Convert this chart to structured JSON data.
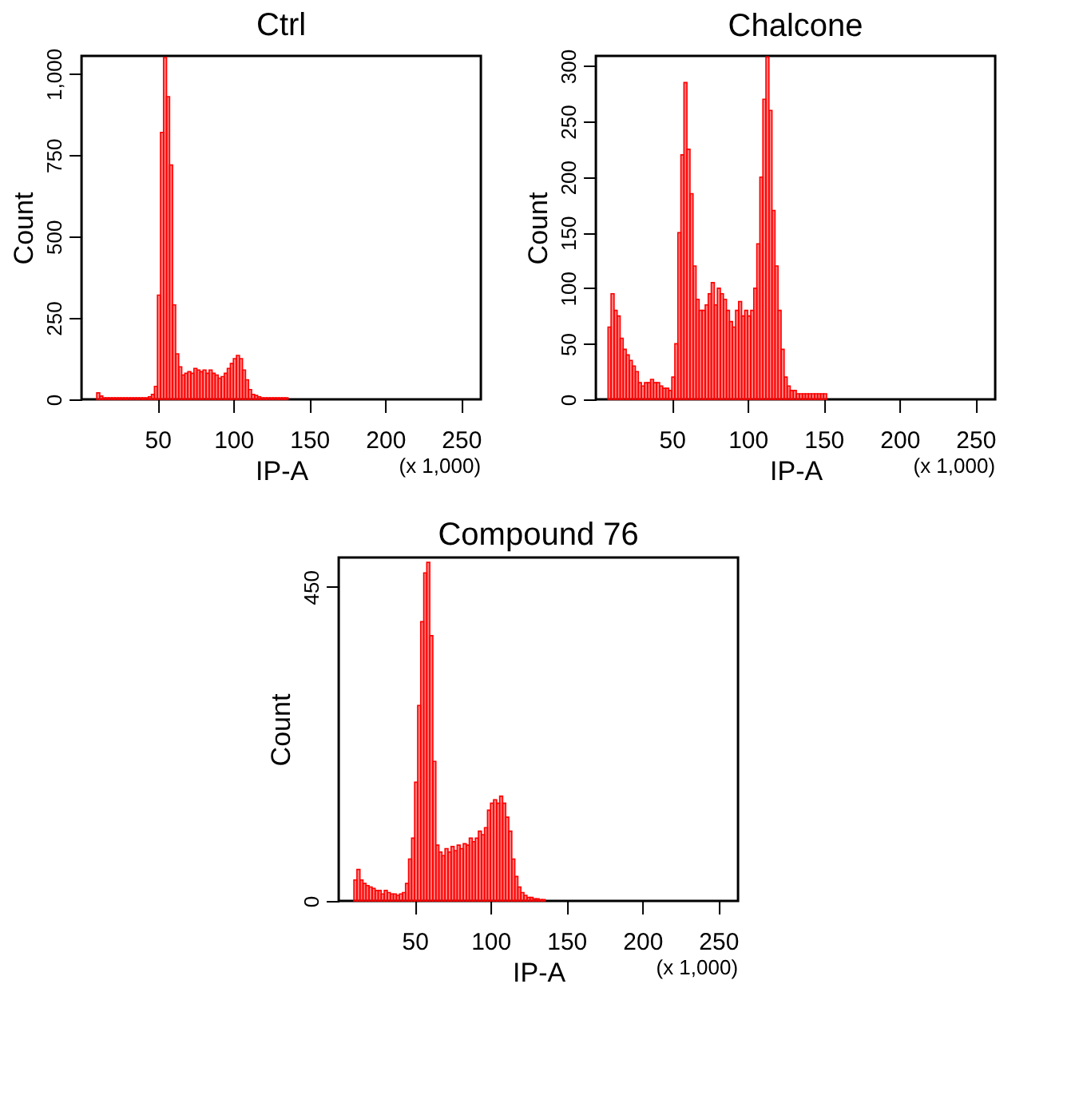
{
  "chart_data": [
    {
      "type": "histogram",
      "title": "Ctrl",
      "xlabel": "IP-A",
      "ylabel": "Count",
      "color": "#ff0000",
      "annotations": [
        "(x 1,000)"
      ],
      "xlim": [
        0,
        263
      ],
      "xticks": [
        50,
        100,
        150,
        200,
        250
      ],
      "ylim": [
        0,
        1055
      ],
      "yticks": [
        0,
        250,
        500,
        750,
        {
          "value": 1000,
          "label": "1,000"
        }
      ],
      "bins": [
        10,
        12,
        14,
        16,
        18,
        20,
        22,
        24,
        26,
        28,
        30,
        32,
        34,
        36,
        38,
        40,
        42,
        44,
        46,
        48,
        50,
        52,
        54,
        56,
        58,
        60,
        62,
        64,
        66,
        68,
        70,
        72,
        74,
        76,
        78,
        80,
        82,
        84,
        86,
        88,
        90,
        92,
        94,
        96,
        98,
        100,
        102,
        104,
        106,
        108,
        110,
        112,
        114,
        116,
        118,
        120,
        122,
        124,
        126,
        128,
        130,
        132,
        134,
        136
      ],
      "values": [
        20,
        10,
        5,
        5,
        5,
        5,
        5,
        5,
        5,
        5,
        5,
        5,
        5,
        5,
        5,
        5,
        5,
        8,
        15,
        40,
        320,
        820,
        1050,
        930,
        720,
        290,
        140,
        100,
        75,
        80,
        85,
        80,
        95,
        90,
        85,
        90,
        80,
        90,
        80,
        75,
        65,
        70,
        80,
        95,
        110,
        125,
        135,
        125,
        90,
        60,
        30,
        15,
        12,
        8,
        5,
        5,
        5,
        5,
        5,
        5,
        5,
        5,
        5
      ]
    },
    {
      "type": "histogram",
      "title": "Chalcone",
      "xlabel": "IP-A",
      "ylabel": "Count",
      "color": "#ff0000",
      "annotations": [
        "(x 1,000)"
      ],
      "xlim": [
        0,
        263
      ],
      "xticks": [
        50,
        100,
        150,
        200,
        250
      ],
      "ylim": [
        0,
        309
      ],
      "yticks": [
        0,
        50,
        100,
        150,
        200,
        250,
        300
      ],
      "bins": [
        8,
        10,
        12,
        14,
        16,
        18,
        20,
        22,
        24,
        26,
        28,
        30,
        32,
        34,
        36,
        38,
        40,
        42,
        44,
        46,
        48,
        50,
        52,
        54,
        56,
        58,
        60,
        62,
        64,
        66,
        68,
        70,
        72,
        74,
        76,
        78,
        80,
        82,
        84,
        86,
        88,
        90,
        92,
        94,
        96,
        98,
        100,
        102,
        104,
        106,
        108,
        110,
        112,
        114,
        116,
        118,
        120,
        122,
        124,
        126,
        128,
        130,
        132,
        134,
        136,
        138,
        140,
        142,
        144,
        146,
        148,
        150,
        152
      ],
      "values": [
        65,
        95,
        80,
        75,
        55,
        45,
        40,
        35,
        30,
        25,
        15,
        12,
        15,
        15,
        18,
        15,
        15,
        12,
        10,
        10,
        8,
        20,
        50,
        150,
        220,
        285,
        225,
        185,
        120,
        90,
        80,
        80,
        85,
        95,
        105,
        85,
        100,
        95,
        90,
        80,
        70,
        65,
        80,
        88,
        75,
        80,
        75,
        80,
        100,
        140,
        200,
        270,
        308,
        260,
        170,
        120,
        80,
        45,
        20,
        12,
        8,
        8,
        5,
        5,
        5,
        5,
        5,
        5,
        5,
        5,
        5,
        5
      ]
    },
    {
      "type": "histogram",
      "title": "Compound 76",
      "xlabel": "IP-A",
      "ylabel": "Count",
      "color": "#ff0000",
      "annotations": [
        "(x 1,000)"
      ],
      "xlim": [
        0,
        263
      ],
      "xticks": [
        50,
        100,
        150,
        200,
        250
      ],
      "ylim": [
        0,
        492
      ],
      "yticks": [
        0,
        450
      ],
      "bins": [
        10,
        12,
        14,
        16,
        18,
        20,
        22,
        24,
        26,
        28,
        30,
        32,
        34,
        36,
        38,
        40,
        42,
        44,
        46,
        48,
        50,
        52,
        54,
        56,
        58,
        60,
        62,
        64,
        66,
        68,
        70,
        72,
        74,
        76,
        78,
        80,
        82,
        84,
        86,
        88,
        90,
        92,
        94,
        96,
        98,
        100,
        102,
        104,
        106,
        108,
        110,
        112,
        114,
        116,
        118,
        120,
        122,
        124,
        126,
        128,
        130,
        132,
        134,
        136
      ],
      "values": [
        30,
        45,
        30,
        25,
        22,
        20,
        18,
        15,
        15,
        10,
        15,
        12,
        10,
        10,
        8,
        10,
        12,
        25,
        60,
        90,
        170,
        280,
        400,
        470,
        485,
        380,
        200,
        80,
        70,
        65,
        75,
        70,
        78,
        72,
        80,
        75,
        82,
        80,
        90,
        85,
        90,
        100,
        95,
        105,
        130,
        140,
        145,
        140,
        150,
        140,
        120,
        100,
        60,
        35,
        20,
        12,
        8,
        5,
        5,
        3,
        3,
        2,
        2
      ]
    }
  ]
}
